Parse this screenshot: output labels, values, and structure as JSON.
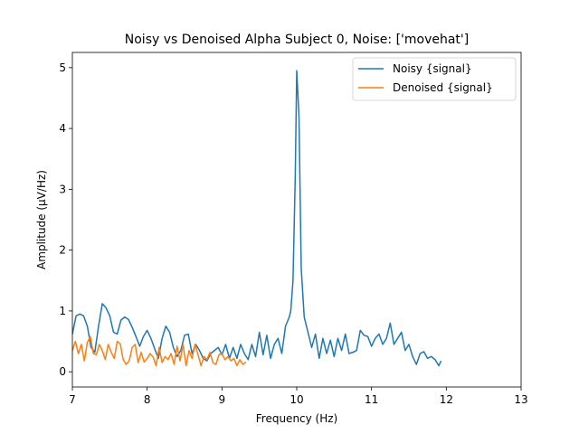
{
  "chart_data": {
    "type": "line",
    "title": "Noisy vs Denoised Alpha Subject 0, Noise: ['movehat']",
    "xlabel": "Frequency (Hz)",
    "ylabel": "Amplitude (µV/Hz)",
    "xlim": [
      7,
      13
    ],
    "ylim": [
      -0.25,
      5.25
    ],
    "xticks": [
      7,
      8,
      9,
      10,
      11,
      12,
      13
    ],
    "yticks": [
      0,
      1,
      2,
      3,
      4,
      5
    ],
    "grid": false,
    "legend": "top-right",
    "series": [
      {
        "name": "Noisy {signal}",
        "color": "#1f77b4",
        "x": [
          7.0,
          7.05,
          7.1,
          7.15,
          7.2,
          7.25,
          7.3,
          7.35,
          7.4,
          7.45,
          7.5,
          7.55,
          7.6,
          7.65,
          7.7,
          7.75,
          7.8,
          7.85,
          7.9,
          7.95,
          8.0,
          8.05,
          8.1,
          8.15,
          8.2,
          8.25,
          8.3,
          8.35,
          8.4,
          8.45,
          8.5,
          8.55,
          8.6,
          8.65,
          8.7,
          8.75,
          8.8,
          8.85,
          8.9,
          8.95,
          9.0,
          9.05,
          9.1,
          9.15,
          9.2,
          9.25,
          9.3,
          9.35,
          9.4,
          9.45,
          9.5,
          9.55,
          9.6,
          9.65,
          9.7,
          9.75,
          9.8,
          9.85,
          9.9,
          9.92,
          9.95,
          9.98,
          10.0,
          10.03,
          10.06,
          10.1,
          10.15,
          10.2,
          10.25,
          10.3,
          10.35,
          10.4,
          10.45,
          10.5,
          10.55,
          10.6,
          10.65,
          10.7,
          10.75,
          10.8,
          10.85,
          10.9,
          10.95,
          11.0,
          11.05,
          11.1,
          11.15,
          11.2,
          11.25,
          11.3,
          11.35,
          11.4,
          11.45,
          11.5,
          11.55,
          11.6,
          11.65,
          11.7,
          11.75,
          11.8,
          11.85,
          11.9,
          11.93
        ],
        "values": [
          0.62,
          0.92,
          0.95,
          0.92,
          0.75,
          0.4,
          0.32,
          0.75,
          1.12,
          1.05,
          0.92,
          0.65,
          0.62,
          0.85,
          0.9,
          0.86,
          0.73,
          0.58,
          0.42,
          0.58,
          0.68,
          0.55,
          0.38,
          0.22,
          0.55,
          0.75,
          0.65,
          0.4,
          0.25,
          0.35,
          0.6,
          0.62,
          0.3,
          0.45,
          0.35,
          0.22,
          0.18,
          0.3,
          0.35,
          0.4,
          0.28,
          0.45,
          0.22,
          0.4,
          0.22,
          0.45,
          0.3,
          0.2,
          0.45,
          0.25,
          0.65,
          0.28,
          0.6,
          0.22,
          0.45,
          0.55,
          0.3,
          0.75,
          0.9,
          1.0,
          1.5,
          3.2,
          4.95,
          4.2,
          1.7,
          0.9,
          0.65,
          0.4,
          0.62,
          0.22,
          0.55,
          0.3,
          0.52,
          0.25,
          0.55,
          0.35,
          0.62,
          0.3,
          0.32,
          0.35,
          0.68,
          0.6,
          0.58,
          0.42,
          0.55,
          0.62,
          0.45,
          0.55,
          0.8,
          0.45,
          0.55,
          0.65,
          0.35,
          0.45,
          0.25,
          0.12,
          0.3,
          0.33,
          0.22,
          0.25,
          0.2,
          0.1,
          0.18
        ]
      },
      {
        "name": "Denoised {signal}",
        "color": "#ff7f0e",
        "x": [
          7.0,
          7.04,
          7.08,
          7.12,
          7.16,
          7.2,
          7.24,
          7.28,
          7.32,
          7.36,
          7.4,
          7.44,
          7.48,
          7.52,
          7.56,
          7.6,
          7.64,
          7.68,
          7.72,
          7.76,
          7.8,
          7.84,
          7.88,
          7.92,
          7.96,
          8.0,
          8.04,
          8.08,
          8.12,
          8.16,
          8.2,
          8.24,
          8.28,
          8.32,
          8.36,
          8.4,
          8.44,
          8.48,
          8.52,
          8.56,
          8.6,
          8.64,
          8.68,
          8.72,
          8.76,
          8.8,
          8.84,
          8.88,
          8.92,
          8.96,
          9.0,
          9.04,
          9.08,
          9.12,
          9.16,
          9.2,
          9.24,
          9.28,
          9.32
        ],
        "values": [
          0.35,
          0.5,
          0.3,
          0.45,
          0.18,
          0.48,
          0.58,
          0.3,
          0.28,
          0.45,
          0.35,
          0.2,
          0.45,
          0.32,
          0.22,
          0.5,
          0.46,
          0.2,
          0.12,
          0.18,
          0.4,
          0.45,
          0.15,
          0.32,
          0.16,
          0.22,
          0.3,
          0.24,
          0.1,
          0.4,
          0.15,
          0.25,
          0.2,
          0.3,
          0.12,
          0.42,
          0.18,
          0.45,
          0.1,
          0.35,
          0.22,
          0.45,
          0.28,
          0.1,
          0.25,
          0.2,
          0.32,
          0.15,
          0.12,
          0.28,
          0.3,
          0.2,
          0.25,
          0.18,
          0.22,
          0.1,
          0.2,
          0.12,
          0.16
        ]
      }
    ]
  }
}
